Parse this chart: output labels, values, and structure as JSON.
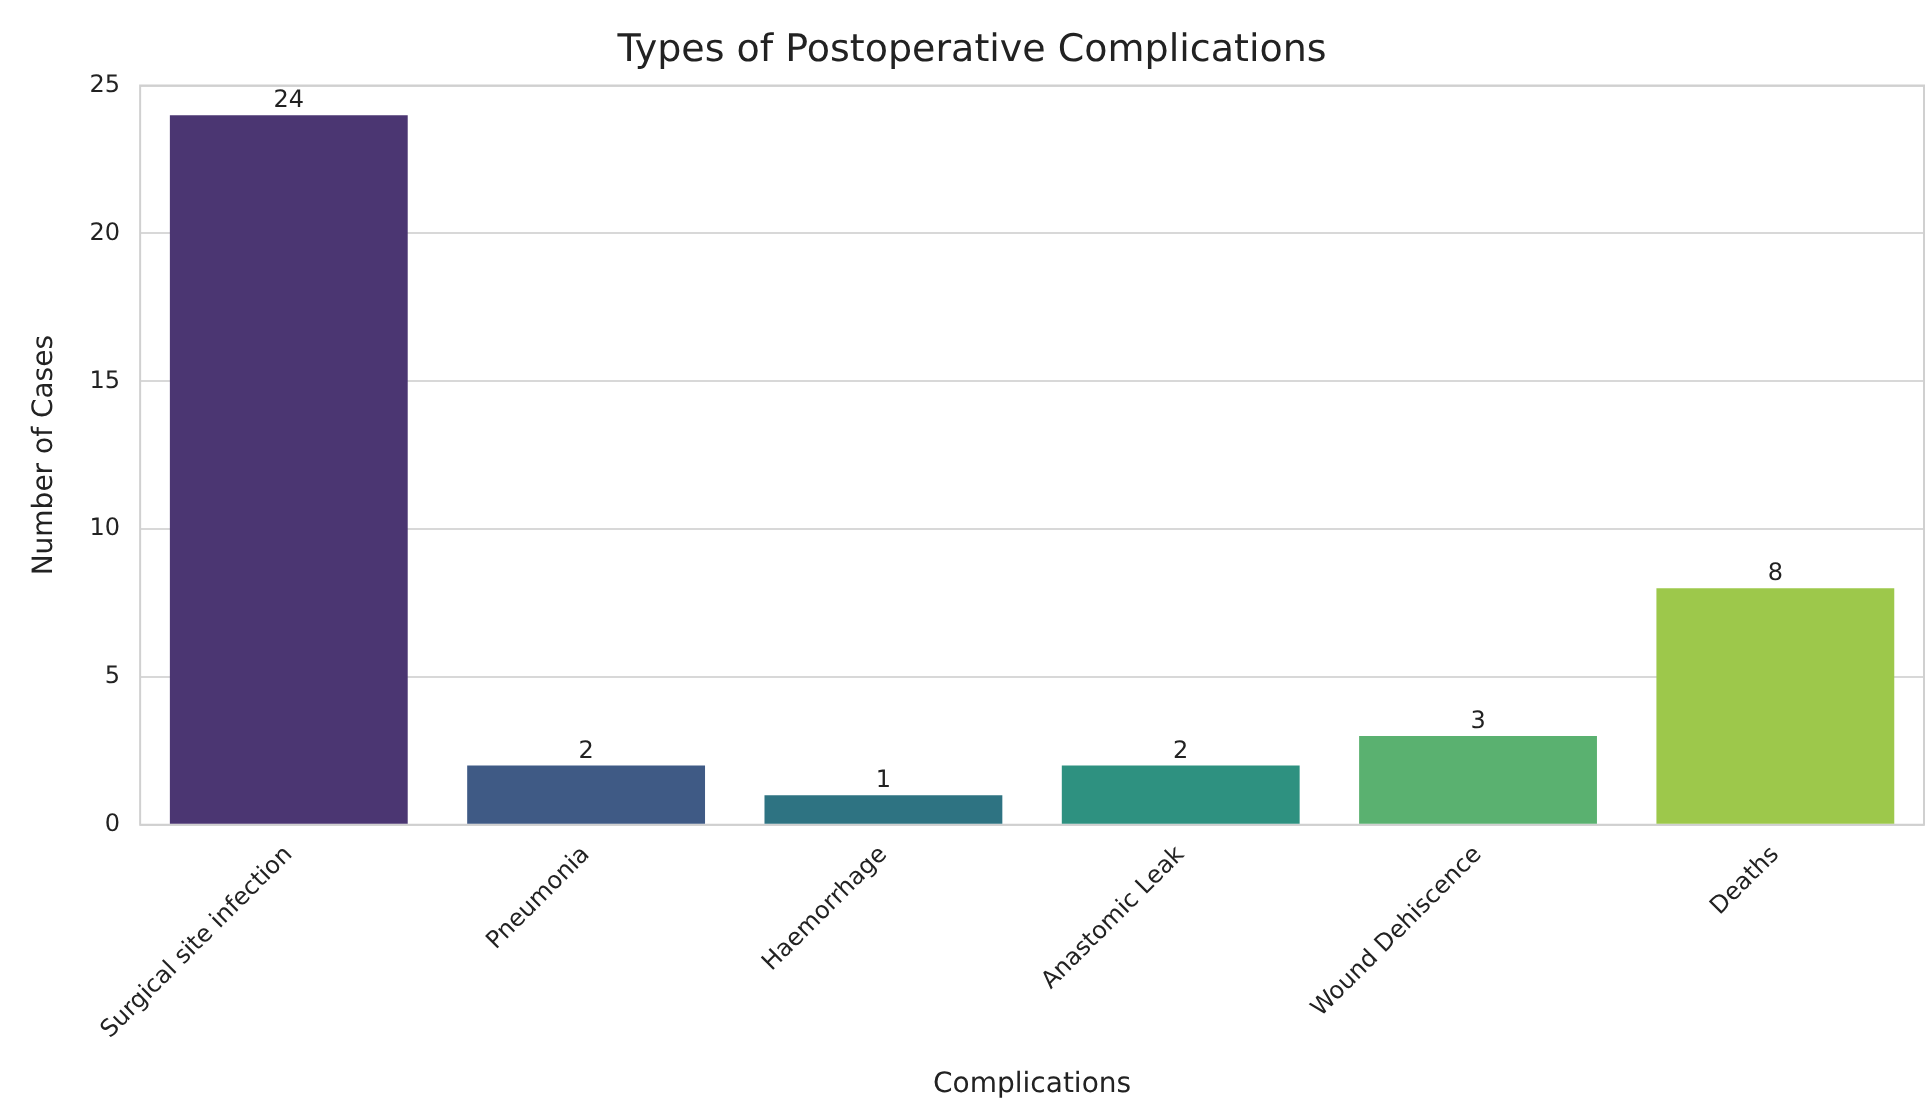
{
  "chart_data": {
    "type": "bar",
    "title": "Types of Postoperative Complications",
    "xlabel": "Complications",
    "ylabel": "Number of Cases",
    "categories": [
      "Surgical site infection",
      "Pneumonia",
      "Haemorrhage",
      "Anastomic Leak",
      "Wound Dehiscence",
      "Deaths"
    ],
    "values": [
      24,
      2,
      1,
      2,
      3,
      8
    ],
    "colors": [
      "#4b3672",
      "#3f5a85",
      "#2e7382",
      "#2e9180",
      "#5ab170",
      "#9dc84b"
    ],
    "ylim": [
      0,
      25
    ],
    "yticks": [
      0,
      5,
      10,
      15,
      20,
      25
    ],
    "grid": "y",
    "data_labels": true,
    "legend": false
  }
}
